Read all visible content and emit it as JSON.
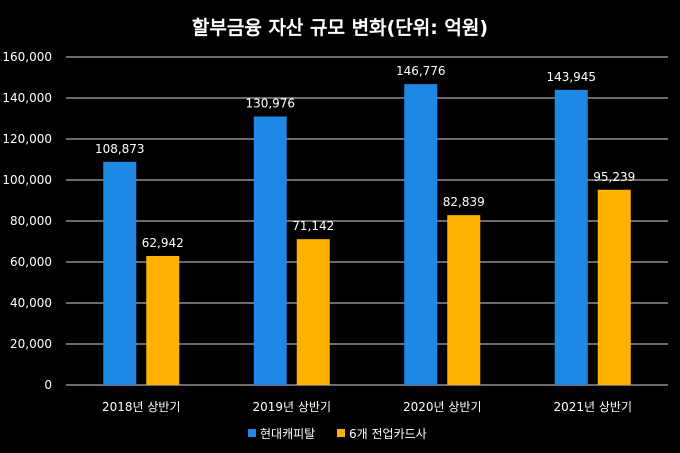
{
  "chart_data": {
    "type": "bar",
    "title": "할부금융 자산 규모 변화(단위: 억원)",
    "categories": [
      "2018년 상반기",
      "2019년 상반기",
      "2020년 상반기",
      "2021년 상반기"
    ],
    "series": [
      {
        "name": "현대캐피탈",
        "color": "#1e88e5",
        "values": [
          108873,
          130976,
          146776,
          143945
        ],
        "labels": [
          "108,873",
          "130,976",
          "146,776",
          "143,945"
        ]
      },
      {
        "name": "6개 전업카드사",
        "color": "#ffb300",
        "values": [
          62942,
          71142,
          82839,
          95239
        ],
        "labels": [
          "62,942",
          "71,142",
          "82,839",
          "95,239"
        ]
      }
    ],
    "ylim": [
      0,
      160000
    ],
    "yticks": [
      0,
      20000,
      40000,
      60000,
      80000,
      100000,
      120000,
      140000,
      160000
    ],
    "ytick_labels": [
      "0",
      "20,000",
      "40,000",
      "60,000",
      "80,000",
      "100,000",
      "120,000",
      "140,000",
      "160,000"
    ],
    "grid": true,
    "legend": "bottom"
  }
}
